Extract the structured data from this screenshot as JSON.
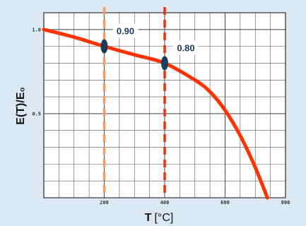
{
  "chart_data": {
    "type": "line",
    "xlabel_bold": "T",
    "xlabel_unit": "[°C]",
    "ylabel": "E(T)/E₀",
    "x_ticks": [
      "200",
      "400",
      "600",
      "800"
    ],
    "y_ticks": [
      "1.0",
      "0.5"
    ],
    "xlim": [
      0,
      800
    ],
    "ylim": [
      0,
      1.1
    ],
    "grid": true,
    "series": [
      {
        "color": "#ff3300",
        "x": [
          0,
          100,
          200,
          300,
          400,
          500,
          550,
          600,
          650,
          700,
          740
        ],
        "y": [
          1.0,
          0.955,
          0.9,
          0.85,
          0.8,
          0.7,
          0.63,
          0.52,
          0.37,
          0.18,
          0.0
        ]
      }
    ],
    "markers": [
      {
        "x": 200,
        "label": "0.90",
        "line_color": "#f0a070",
        "y": 0.9
      },
      {
        "x": 400,
        "label": "0.80",
        "line_color": "#e63312",
        "y": 0.8
      }
    ],
    "marker_color": "#1f3a5f"
  }
}
